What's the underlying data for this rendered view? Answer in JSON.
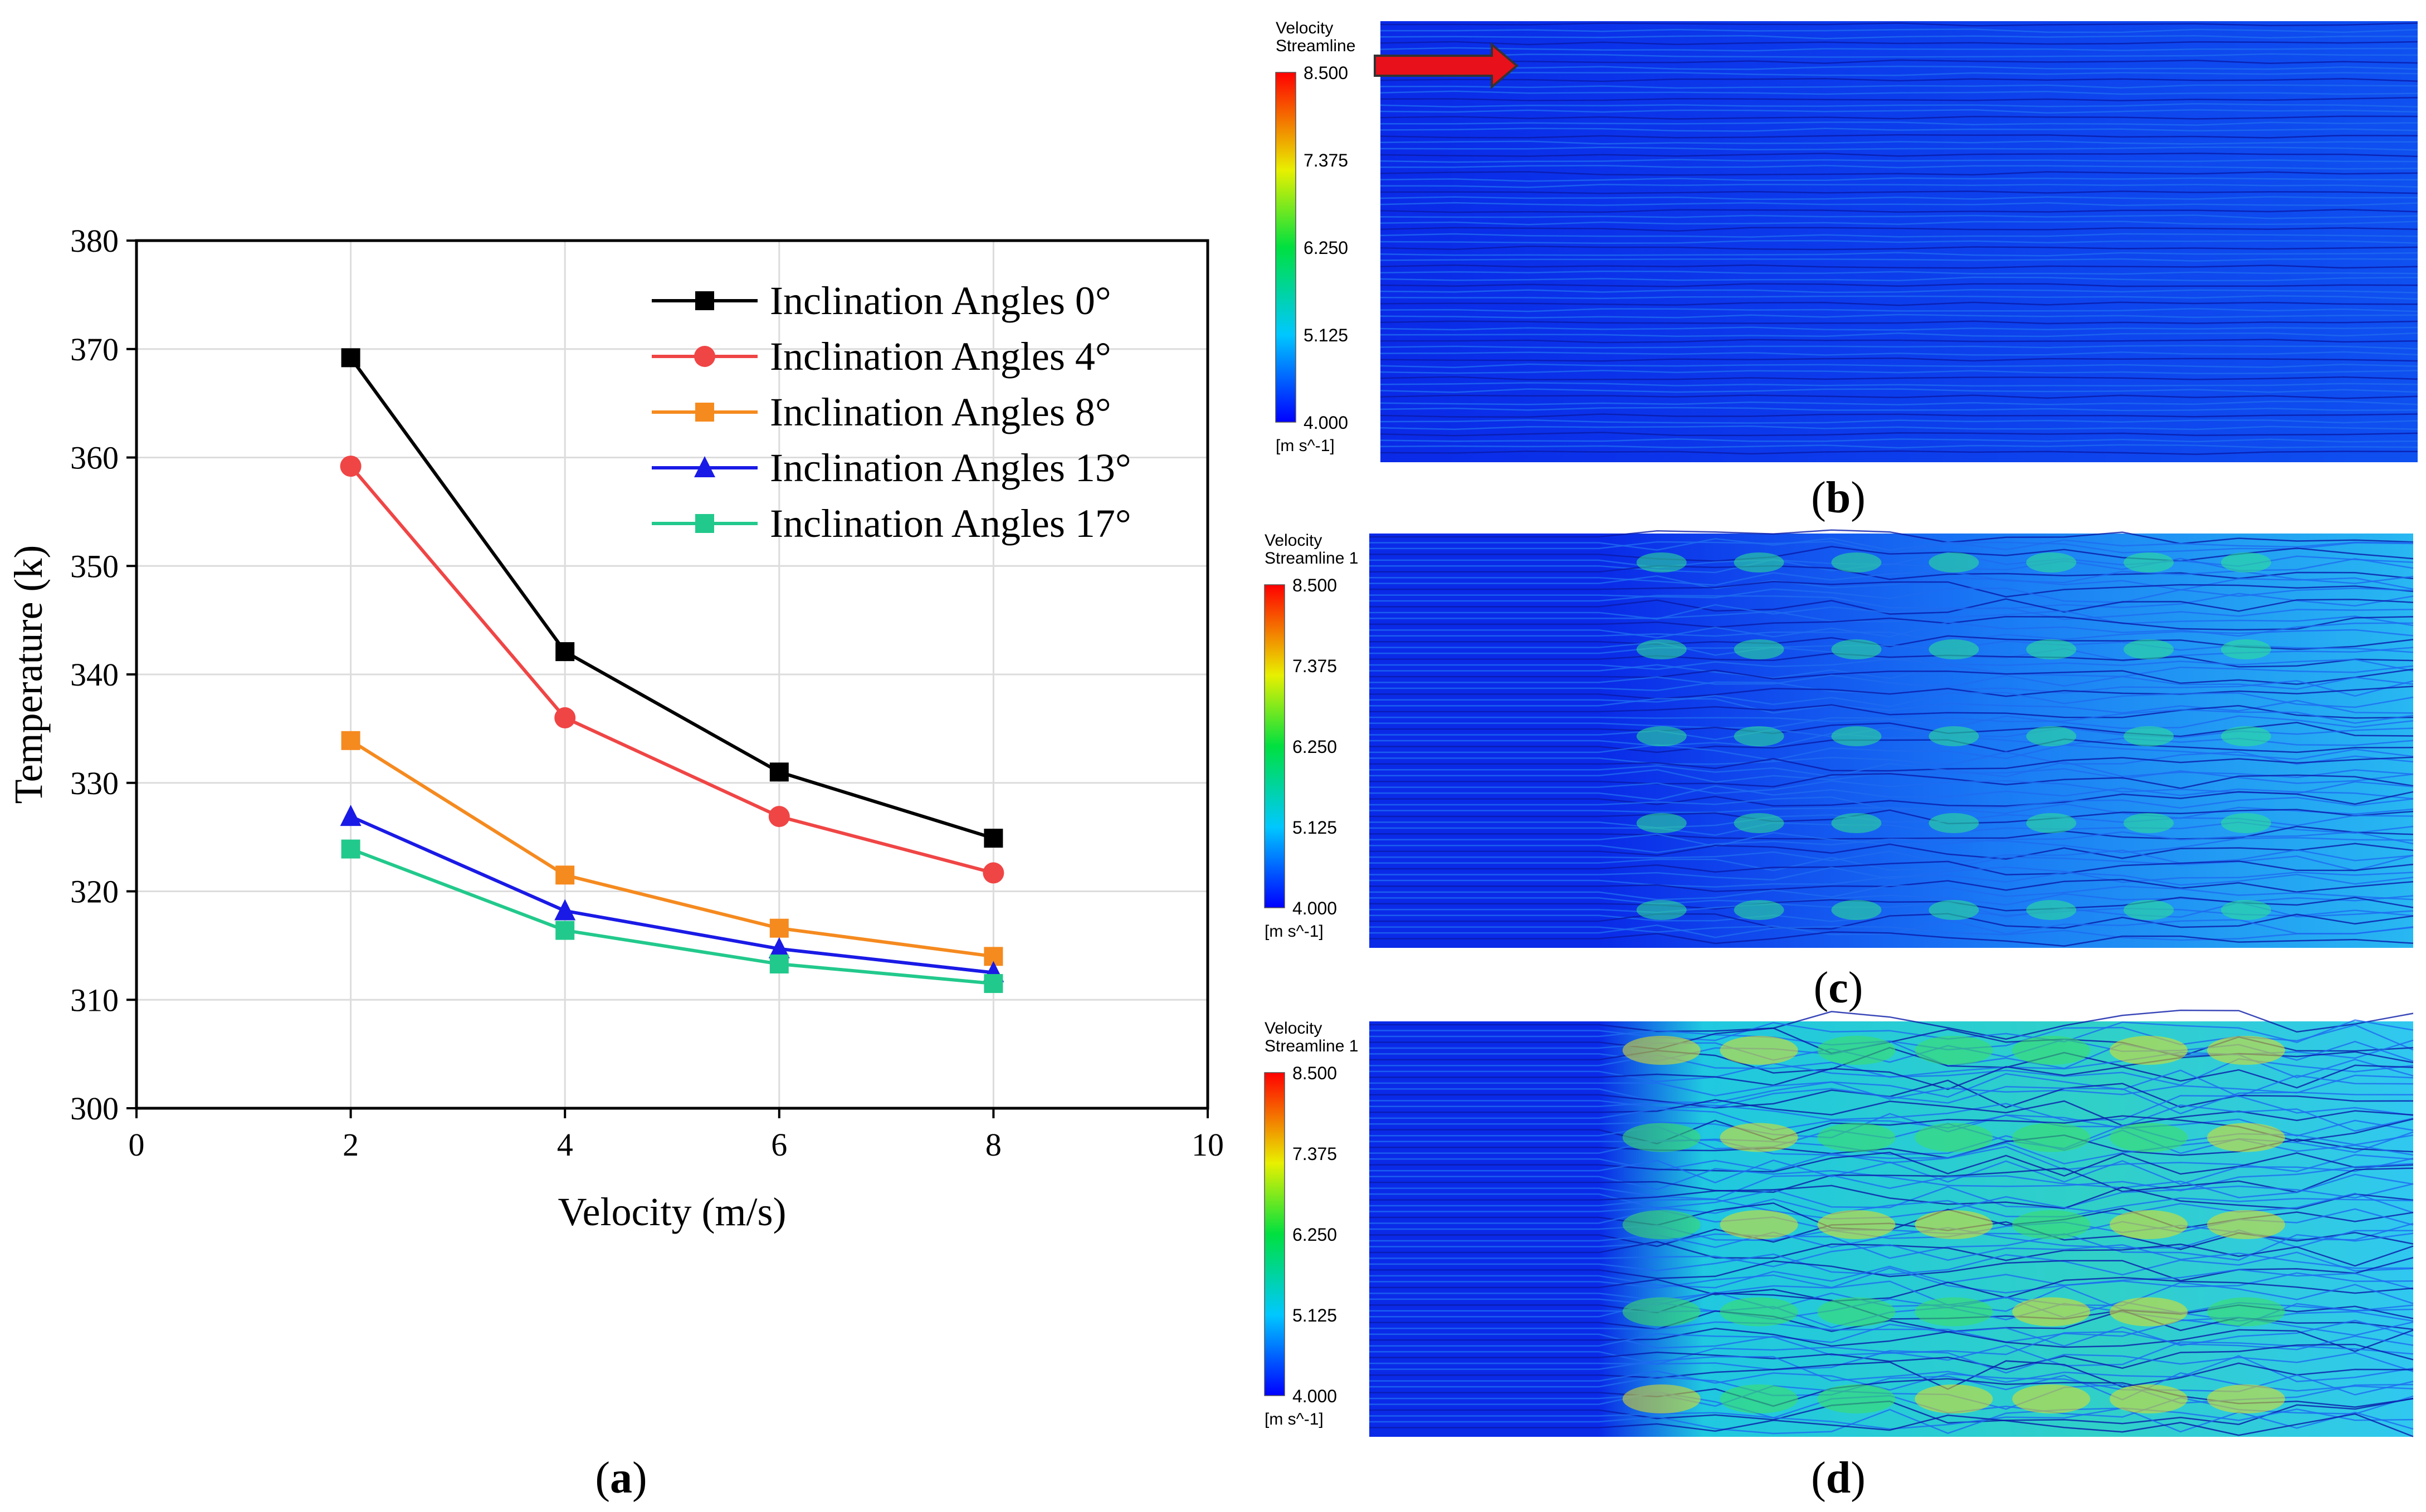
{
  "chart_data": [
    {
      "type": "line",
      "panel_label": "a",
      "xlabel": "Velocity (m/s)",
      "ylabel": "Temperature (k)",
      "xlim": [
        0,
        10
      ],
      "ylim": [
        300,
        380
      ],
      "xticks": [
        0,
        2,
        4,
        6,
        8,
        10
      ],
      "yticks": [
        300,
        310,
        320,
        330,
        340,
        350,
        360,
        370,
        380
      ],
      "grid": true,
      "legend_position": "top-right",
      "x": [
        2,
        4,
        6,
        8
      ],
      "series": [
        {
          "name": "Inclination Angles 0°",
          "values": [
            369.2,
            342.1,
            331.0,
            324.9
          ],
          "color": "#000000",
          "marker": "square"
        },
        {
          "name": "Inclination Angles 4°",
          "values": [
            359.2,
            336.0,
            326.9,
            321.7
          ],
          "color": "#f04545",
          "marker": "circle"
        },
        {
          "name": "Inclination Angles 8°",
          "values": [
            333.9,
            321.5,
            316.6,
            314.0
          ],
          "color": "#f58a1f",
          "marker": "square"
        },
        {
          "name": "Inclination Angles 13°",
          "values": [
            326.9,
            318.2,
            314.7,
            312.5
          ],
          "color": "#1a1ae6",
          "marker": "triangle"
        },
        {
          "name": "Inclination Angles 17°",
          "values": [
            323.9,
            316.4,
            313.3,
            311.5
          ],
          "color": "#22c98c",
          "marker": "square"
        }
      ]
    },
    {
      "type": "heatmap",
      "panel_label": "b",
      "title_lines": [
        "Velocity",
        "Streamline"
      ],
      "legend_ticks": [
        "8.500",
        "7.375",
        "6.250",
        "5.125",
        "4.000"
      ],
      "unit": "[m s^-1]"
    },
    {
      "type": "heatmap",
      "panel_label": "c",
      "title_lines": [
        "Velocity",
        "Streamline 1"
      ],
      "legend_ticks": [
        "8.500",
        "7.375",
        "6.250",
        "5.125",
        "4.000"
      ],
      "unit": "[m s^-1]"
    },
    {
      "type": "heatmap",
      "panel_label": "d",
      "title_lines": [
        "Velocity",
        "Streamline 1"
      ],
      "legend_ticks": [
        "8.500",
        "7.375",
        "6.250",
        "5.125",
        "4.000"
      ],
      "unit": "[m s^-1]"
    }
  ]
}
